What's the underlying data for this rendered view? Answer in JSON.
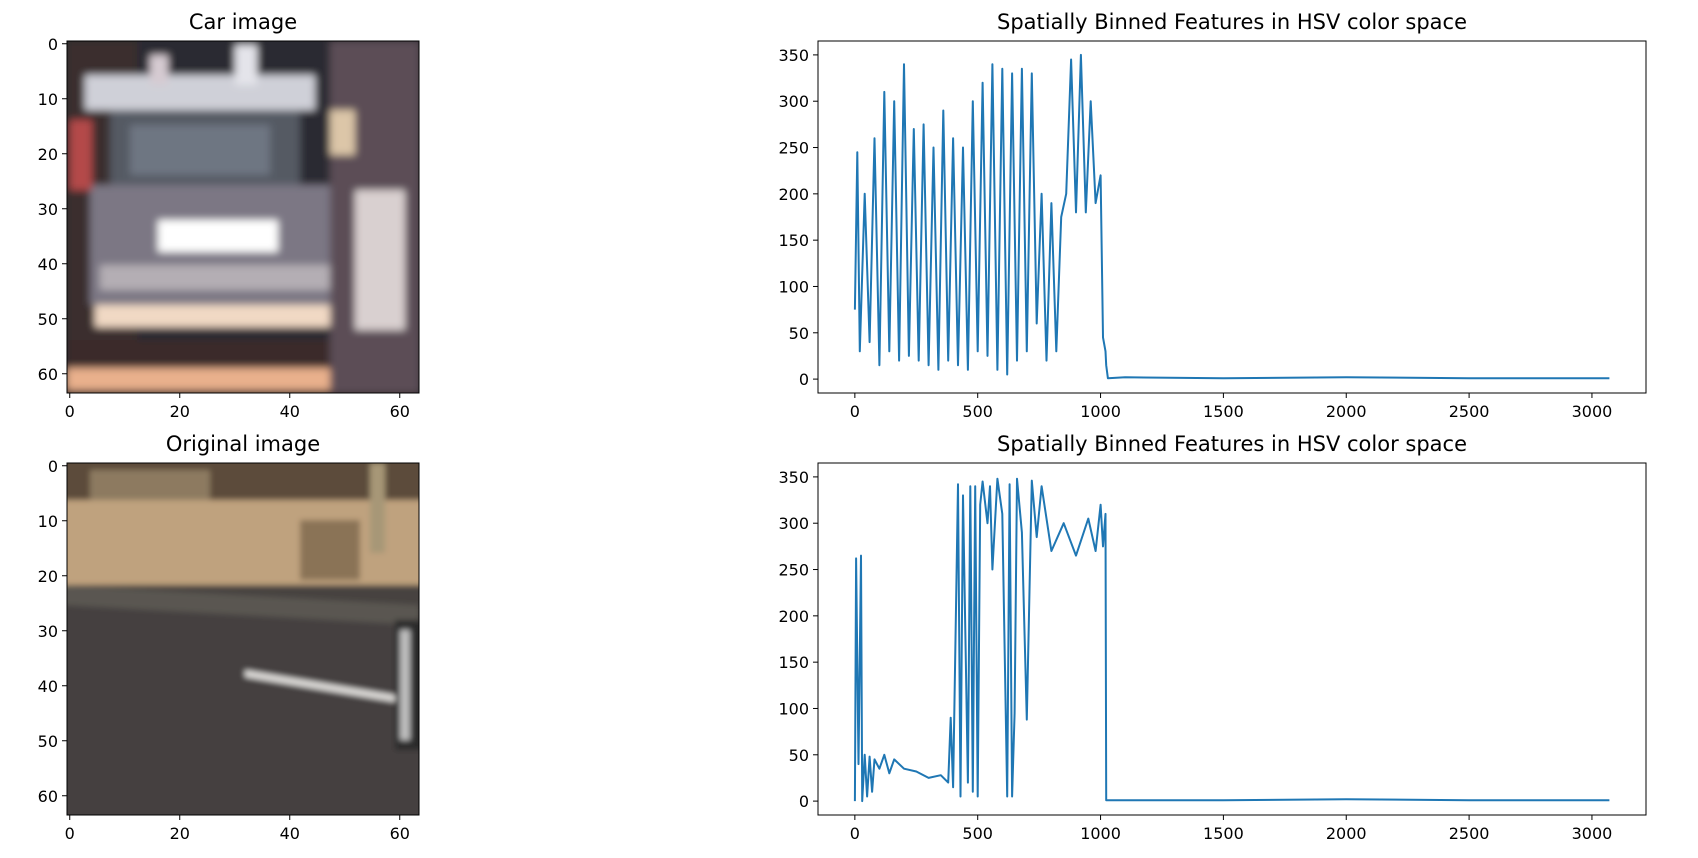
{
  "chart_data": [
    {
      "type": "image",
      "title": "Car image",
      "image_description": "blurred rear view of a car on a road, 64x64 pixels, with bright RGB color fringing",
      "xticks": [
        "0",
        "20",
        "40",
        "60"
      ],
      "yticks": [
        "0",
        "10",
        "20",
        "30",
        "40",
        "50",
        "60"
      ],
      "xlim": [
        -0.5,
        63.5
      ],
      "ylim": [
        63.5,
        -0.5
      ]
    },
    {
      "type": "line",
      "title": "Spatially Binned Features in HSV color space",
      "xticks": [
        "0",
        "500",
        "1000",
        "1500",
        "2000",
        "2500",
        "3000"
      ],
      "yticks": [
        "0",
        "50",
        "100",
        "150",
        "200",
        "250",
        "300",
        "350"
      ],
      "xlim": [
        -150,
        3220
      ],
      "ylim": [
        -15,
        365
      ],
      "color": "#1f77b4",
      "series": [
        {
          "x": [
            0,
            10,
            20,
            40,
            60,
            80,
            100,
            120,
            140,
            160,
            180,
            200,
            220,
            240,
            260,
            280,
            300,
            320,
            340,
            360,
            380,
            400,
            420,
            440,
            460,
            480,
            500,
            520,
            540,
            560,
            580,
            600,
            620,
            640,
            660,
            680,
            700,
            720,
            740,
            760,
            780,
            800,
            820,
            840,
            860,
            880,
            900,
            920,
            940,
            960,
            980,
            1000,
            1010,
            1020,
            1023,
            1030,
            1100,
            1500,
            2000,
            2500,
            3071
          ],
          "y": [
            75,
            245,
            30,
            200,
            40,
            260,
            15,
            310,
            30,
            300,
            20,
            340,
            25,
            270,
            20,
            275,
            15,
            250,
            10,
            290,
            20,
            260,
            15,
            250,
            10,
            300,
            30,
            320,
            25,
            340,
            10,
            335,
            5,
            330,
            20,
            335,
            30,
            330,
            60,
            200,
            20,
            190,
            30,
            175,
            200,
            345,
            180,
            350,
            180,
            300,
            190,
            220,
            45,
            30,
            15,
            1,
            2,
            1,
            2,
            1,
            1
          ]
        }
      ]
    },
    {
      "type": "image",
      "title": "Original image",
      "image_description": "64x64 crop of a road edge with tan dirt and grass at the top and dark asphalt with a white lane marking below",
      "xticks": [
        "0",
        "20",
        "40",
        "60"
      ],
      "yticks": [
        "0",
        "10",
        "20",
        "30",
        "40",
        "50",
        "60"
      ],
      "xlim": [
        -0.5,
        63.5
      ],
      "ylim": [
        63.5,
        -0.5
      ]
    },
    {
      "type": "line",
      "title": "Spatially Binned Features in HSV color space",
      "xticks": [
        "0",
        "500",
        "1000",
        "1500",
        "2000",
        "2500",
        "3000"
      ],
      "yticks": [
        "0",
        "50",
        "100",
        "150",
        "200",
        "250",
        "300",
        "350"
      ],
      "xlim": [
        -150,
        3220
      ],
      "ylim": [
        -15,
        365
      ],
      "color": "#1f77b4",
      "series": [
        {
          "x": [
            0,
            5,
            15,
            25,
            30,
            40,
            50,
            60,
            70,
            80,
            100,
            120,
            140,
            160,
            200,
            250,
            300,
            350,
            380,
            390,
            400,
            420,
            430,
            440,
            460,
            470,
            480,
            490,
            500,
            510,
            520,
            540,
            550,
            560,
            580,
            600,
            620,
            630,
            640,
            650,
            660,
            680,
            700,
            720,
            740,
            760,
            800,
            850,
            900,
            950,
            980,
            1000,
            1010,
            1020,
            1023,
            1030,
            1500,
            2000,
            2500,
            3071
          ],
          "y": [
            0,
            262,
            40,
            265,
            0,
            50,
            5,
            48,
            10,
            45,
            35,
            50,
            30,
            45,
            35,
            32,
            25,
            28,
            20,
            90,
            15,
            342,
            5,
            330,
            20,
            340,
            10,
            340,
            5,
            320,
            345,
            300,
            340,
            250,
            348,
            310,
            5,
            342,
            5,
            95,
            348,
            290,
            88,
            346,
            285,
            340,
            270,
            300,
            265,
            305,
            270,
            320,
            275,
            310,
            1,
            1,
            1,
            2,
            1,
            1
          ]
        }
      ]
    }
  ]
}
